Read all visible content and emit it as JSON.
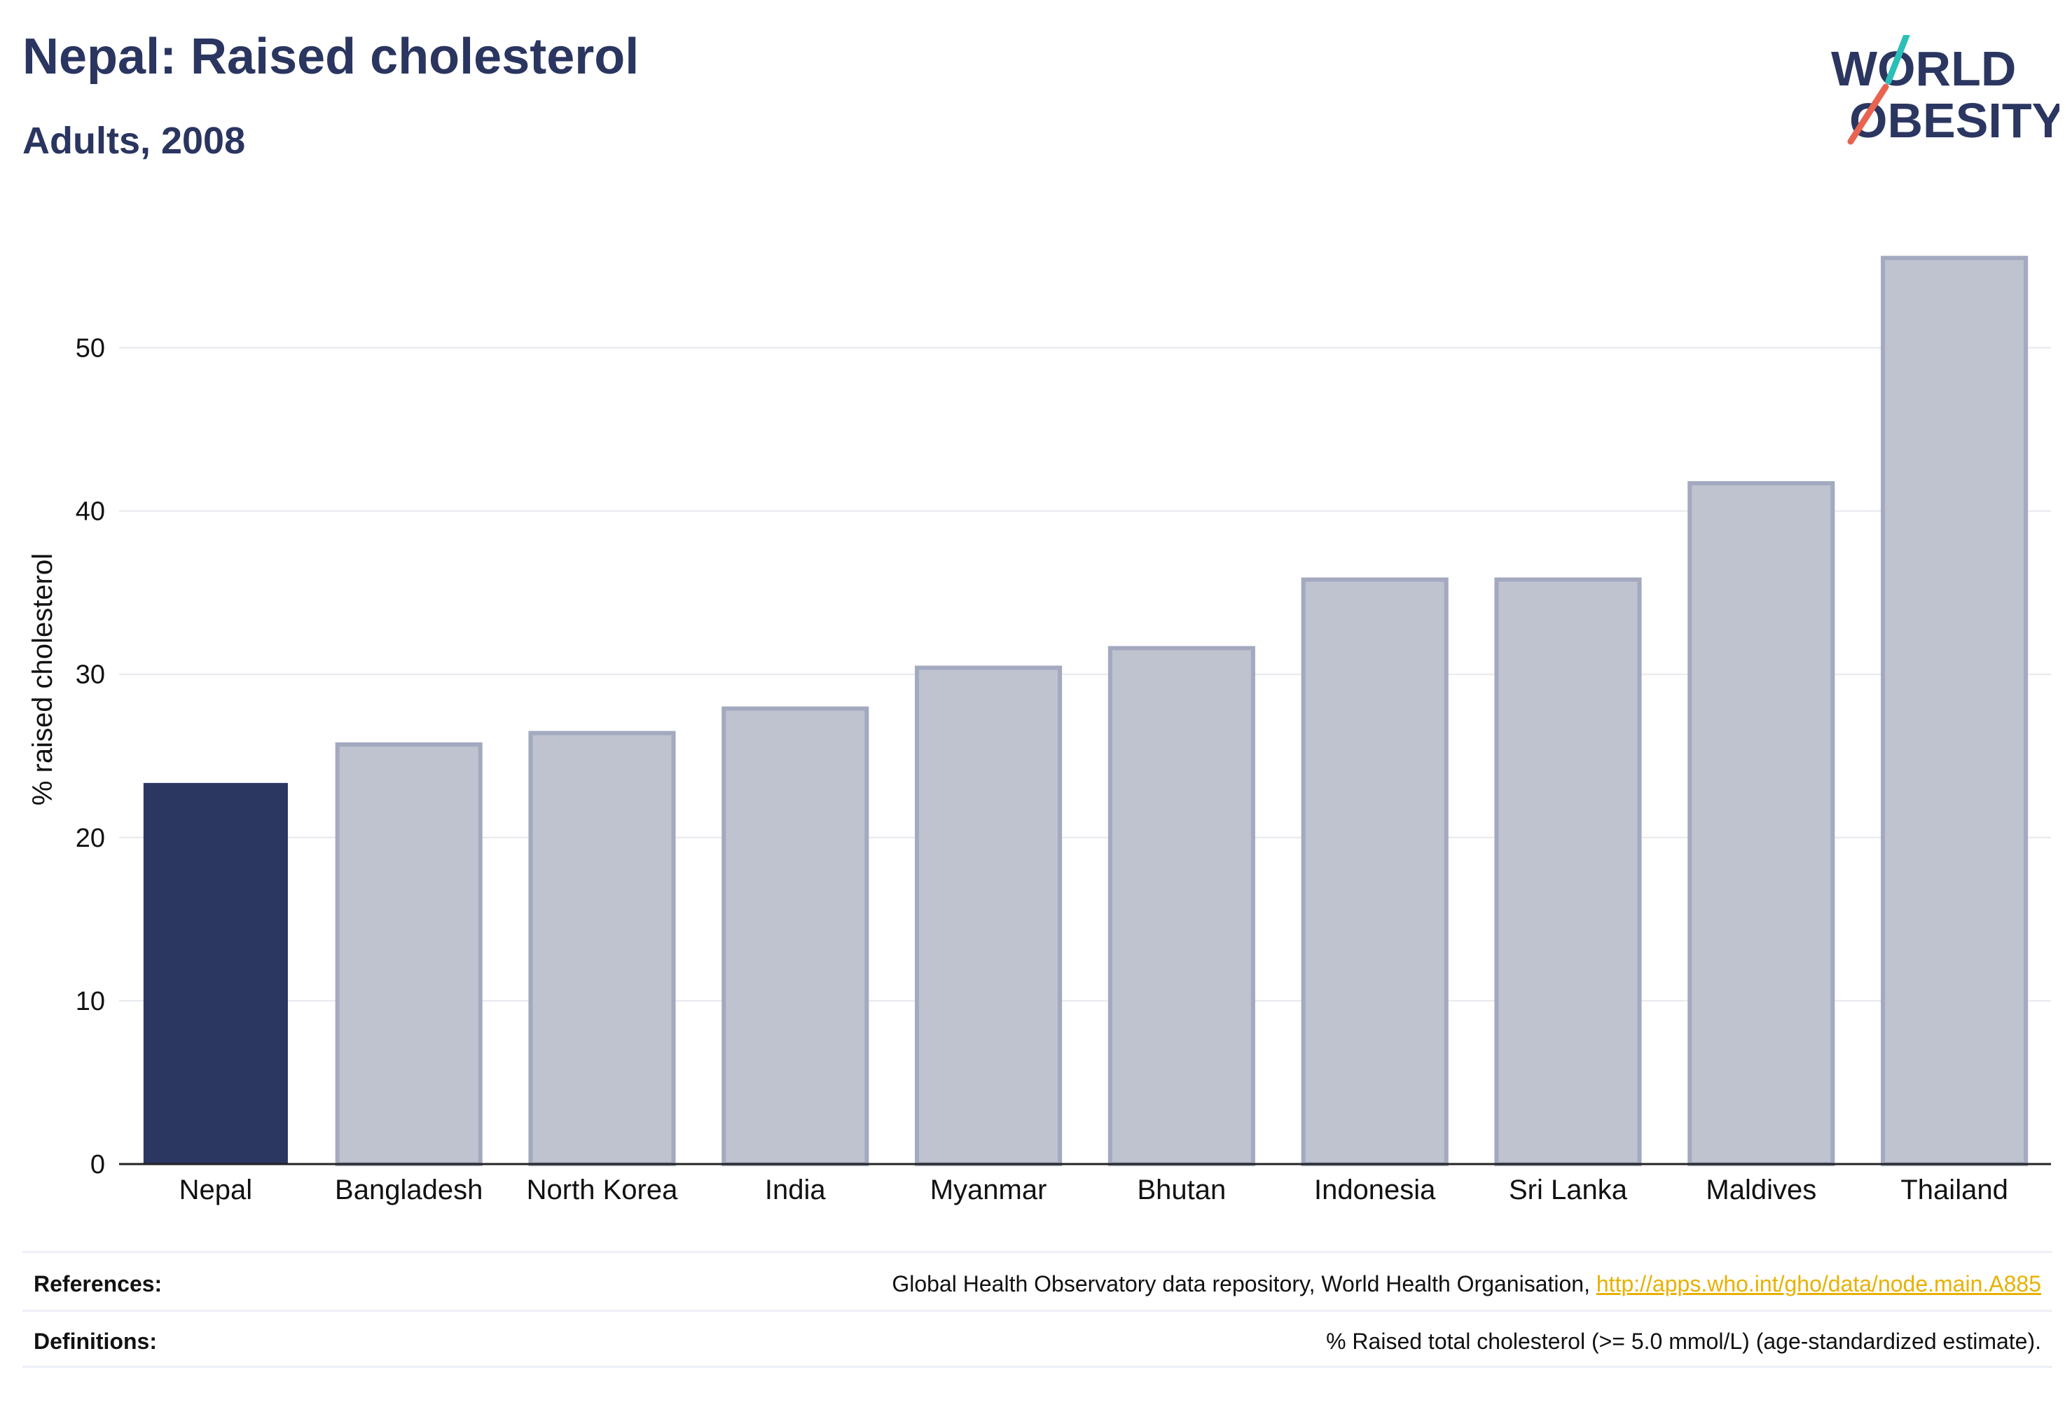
{
  "header": {
    "title": "Nepal: Raised cholesterol",
    "subtitle": "Adults, 2008"
  },
  "logo": {
    "line1": "WORLD",
    "line2": "OBESITY"
  },
  "colors": {
    "highlight": "#2b3661",
    "bar_fill": "#bfc2cf",
    "bar_stroke": "#a3a9bf",
    "accent_teal": "#2bbfb8",
    "accent_red": "#e86450",
    "link": "#e8b100"
  },
  "chart_data": {
    "type": "bar",
    "categories": [
      "Nepal",
      "Bangladesh",
      "North Korea",
      "India",
      "Myanmar",
      "Bhutan",
      "Indonesia",
      "Sri Lanka",
      "Maldives",
      "Thailand"
    ],
    "values": [
      23.3,
      25.7,
      26.4,
      27.9,
      30.4,
      31.6,
      35.8,
      35.8,
      41.7,
      55.5
    ],
    "highlight": "Nepal",
    "ylabel": "% raised cholesterol",
    "xlabel": "",
    "ylim": [
      0,
      58
    ],
    "yticks": [
      0,
      10,
      20,
      30,
      40,
      50
    ],
    "grid": true
  },
  "footer": {
    "references_label": "References:",
    "references_text": "Global Health Observatory data repository, World Health Organisation, ",
    "references_link": "http://apps.who.int/gho/data/node.main.A885",
    "definitions_label": "Definitions:",
    "definitions_text": "% Raised total cholesterol (>= 5.0 mmol/L) (age-standardized estimate)."
  }
}
